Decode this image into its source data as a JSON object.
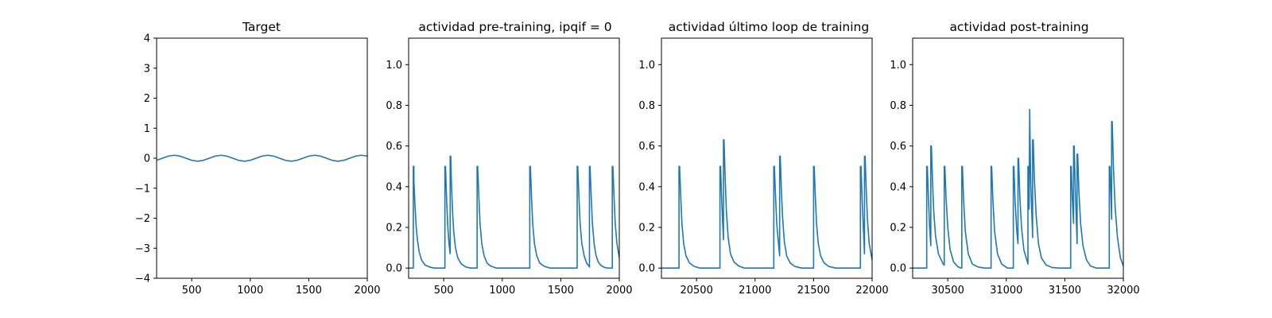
{
  "chart_data": [
    {
      "type": "line",
      "title": "Target",
      "xlim": [
        200,
        2000
      ],
      "ylim": [
        -4,
        4
      ],
      "xticks": [
        500,
        1000,
        1500,
        2000
      ],
      "yticks": [
        -4,
        -3,
        -2,
        -1,
        0,
        1,
        2,
        3,
        4
      ],
      "color": "#1f77b4",
      "series": [
        {
          "x": [
            200,
            250,
            300,
            350,
            400,
            450,
            500,
            550,
            600,
            650,
            700,
            750,
            800,
            850,
            900,
            950,
            1000,
            1050,
            1100,
            1150,
            1200,
            1250,
            1300,
            1350,
            1400,
            1450,
            1500,
            1550,
            1600,
            1650,
            1700,
            1750,
            1800,
            1850,
            1900,
            1950,
            2000
          ],
          "y": [
            -0.07,
            0.0,
            0.07,
            0.1,
            0.07,
            0.0,
            -0.07,
            -0.1,
            -0.07,
            0.0,
            0.07,
            0.1,
            0.07,
            0.0,
            -0.07,
            -0.1,
            -0.07,
            0.0,
            0.07,
            0.1,
            0.07,
            0.0,
            -0.07,
            -0.1,
            -0.07,
            0.0,
            0.07,
            0.1,
            0.07,
            0.0,
            -0.07,
            -0.1,
            -0.07,
            0.0,
            0.07,
            0.1,
            0.07
          ]
        }
      ]
    },
    {
      "type": "line",
      "title": "actividad pre-training, ipqif = 0",
      "xlim": [
        200,
        2000
      ],
      "ylim": [
        -0.05,
        1.13
      ],
      "xticks": [
        500,
        1000,
        1500,
        2000
      ],
      "yticks": [
        0.0,
        0.2,
        0.4,
        0.6,
        0.8,
        1.0
      ],
      "color": "#1f77b4",
      "series": [
        {
          "x": [
            200,
            240,
            240,
            245,
            245,
            255,
            265,
            275,
            290,
            310,
            340,
            380,
            420,
            460,
            510,
            510,
            515,
            525,
            535,
            545,
            555,
            555,
            560,
            565,
            575,
            585,
            600,
            620,
            650,
            690,
            730,
            785,
            785,
            790,
            800,
            810,
            825,
            845,
            870,
            900,
            950,
            1000,
            1060,
            1120,
            1180,
            1235,
            1235,
            1240,
            1250,
            1260,
            1275,
            1295,
            1320,
            1360,
            1410,
            1460,
            1510,
            1570,
            1640,
            1640,
            1645,
            1655,
            1665,
            1680,
            1700,
            1720,
            1740,
            1745,
            1745,
            1750,
            1760,
            1770,
            1785,
            1800,
            1820,
            1845,
            1870,
            1900,
            1930,
            1940,
            1940,
            1945,
            1955,
            1965,
            1980,
            2000
          ],
          "y": [
            0.0,
            0.0,
            0.5,
            0.5,
            0.43,
            0.3,
            0.2,
            0.14,
            0.08,
            0.04,
            0.015,
            0.005,
            0.0,
            0.0,
            0.0,
            0.5,
            0.5,
            0.33,
            0.2,
            0.12,
            0.07,
            0.55,
            0.55,
            0.43,
            0.28,
            0.18,
            0.1,
            0.05,
            0.02,
            0.005,
            0.0,
            0.0,
            0.5,
            0.5,
            0.35,
            0.22,
            0.12,
            0.06,
            0.025,
            0.01,
            0.0,
            0.0,
            0.0,
            0.0,
            0.0,
            0.0,
            0.5,
            0.5,
            0.35,
            0.22,
            0.12,
            0.06,
            0.025,
            0.008,
            0.0,
            0.0,
            0.0,
            0.0,
            0.0,
            0.5,
            0.5,
            0.35,
            0.22,
            0.12,
            0.06,
            0.025,
            0.01,
            0.005,
            0.5,
            0.5,
            0.35,
            0.22,
            0.12,
            0.065,
            0.03,
            0.012,
            0.004,
            0.0,
            0.0,
            0.0,
            0.5,
            0.5,
            0.35,
            0.22,
            0.12,
            0.05
          ]
        }
      ]
    },
    {
      "type": "line",
      "title": "actividad último loop de training",
      "xlim": [
        20200,
        22000
      ],
      "ylim": [
        -0.05,
        1.13
      ],
      "xticks": [
        20500,
        21000,
        21500,
        22000
      ],
      "yticks": [
        0.0,
        0.2,
        0.4,
        0.6,
        0.8,
        1.0
      ],
      "color": "#1f77b4",
      "series": [
        {
          "x": [
            20200,
            20350,
            20350,
            20355,
            20365,
            20375,
            20390,
            20410,
            20440,
            20480,
            20530,
            20600,
            20700,
            20700,
            20705,
            20715,
            20725,
            20730,
            20730,
            20735,
            20745,
            20755,
            20770,
            20790,
            20820,
            20860,
            20910,
            20980,
            21060,
            21160,
            21160,
            21165,
            21175,
            21185,
            21200,
            21210,
            21210,
            21215,
            21225,
            21235,
            21250,
            21270,
            21300,
            21340,
            21400,
            21450,
            21500,
            21500,
            21505,
            21515,
            21525,
            21540,
            21560,
            21590,
            21630,
            21690,
            21760,
            21840,
            21900,
            21900,
            21905,
            21915,
            21925,
            21935,
            21935,
            21940,
            21950,
            21960,
            21975,
            22000
          ],
          "y": [
            0.0,
            0.0,
            0.5,
            0.5,
            0.35,
            0.22,
            0.12,
            0.06,
            0.025,
            0.008,
            0.0,
            0.0,
            0.0,
            0.5,
            0.5,
            0.33,
            0.2,
            0.14,
            0.63,
            0.63,
            0.43,
            0.28,
            0.15,
            0.07,
            0.03,
            0.01,
            0.0,
            0.0,
            0.0,
            0.0,
            0.5,
            0.5,
            0.35,
            0.22,
            0.12,
            0.06,
            0.55,
            0.55,
            0.38,
            0.25,
            0.13,
            0.06,
            0.025,
            0.008,
            0.0,
            0.0,
            0.0,
            0.5,
            0.5,
            0.35,
            0.22,
            0.12,
            0.06,
            0.025,
            0.008,
            0.0,
            0.0,
            0.0,
            0.0,
            0.5,
            0.5,
            0.33,
            0.2,
            0.07,
            0.55,
            0.55,
            0.38,
            0.24,
            0.12,
            0.04
          ]
        }
      ]
    },
    {
      "type": "line",
      "title": "actividad post-training",
      "xlim": [
        30200,
        32000
      ],
      "ylim": [
        -0.05,
        1.13
      ],
      "xticks": [
        30500,
        31000,
        31500,
        32000
      ],
      "yticks": [
        0.0,
        0.2,
        0.4,
        0.6,
        0.8,
        1.0
      ],
      "color": "#1f77b4",
      "series": [
        {
          "x": [
            30200,
            30320,
            30320,
            30325,
            30335,
            30345,
            30355,
            30355,
            30360,
            30370,
            30380,
            30395,
            30420,
            30460,
            30470,
            30470,
            30475,
            30485,
            30500,
            30520,
            30550,
            30590,
            30620,
            30620,
            30625,
            30635,
            30650,
            30675,
            30710,
            30760,
            30820,
            30870,
            30870,
            30875,
            30885,
            30900,
            30925,
            30960,
            31010,
            31060,
            31060,
            31065,
            31075,
            31090,
            31100,
            31100,
            31105,
            31115,
            31130,
            31150,
            31180,
            31185,
            31185,
            31190,
            31195,
            31200,
            31200,
            31205,
            31210,
            31225,
            31225,
            31230,
            31240,
            31255,
            31275,
            31300,
            31340,
            31390,
            31450,
            31500,
            31550,
            31550,
            31555,
            31565,
            31575,
            31575,
            31580,
            31590,
            31605,
            31605,
            31610,
            31620,
            31635,
            31655,
            31685,
            31720,
            31770,
            31830,
            31880,
            31880,
            31885,
            31895,
            31900,
            31900,
            31905,
            31915,
            31930,
            31950,
            31975,
            32000
          ],
          "y": [
            0.0,
            0.0,
            0.5,
            0.5,
            0.34,
            0.2,
            0.11,
            0.6,
            0.6,
            0.42,
            0.28,
            0.16,
            0.07,
            0.02,
            0.015,
            0.5,
            0.5,
            0.35,
            0.2,
            0.09,
            0.03,
            0.005,
            0.0,
            0.5,
            0.5,
            0.34,
            0.18,
            0.07,
            0.02,
            0.005,
            0.0,
            0.0,
            0.5,
            0.5,
            0.34,
            0.18,
            0.07,
            0.02,
            0.0,
            0.0,
            0.5,
            0.5,
            0.33,
            0.18,
            0.12,
            0.54,
            0.54,
            0.36,
            0.2,
            0.09,
            0.03,
            0.02,
            0.5,
            0.5,
            0.29,
            0.78,
            0.78,
            0.55,
            0.4,
            0.15,
            0.63,
            0.63,
            0.44,
            0.26,
            0.12,
            0.05,
            0.015,
            0.003,
            0.0,
            0.0,
            0.0,
            0.5,
            0.5,
            0.33,
            0.22,
            0.6,
            0.6,
            0.38,
            0.12,
            0.56,
            0.56,
            0.38,
            0.22,
            0.11,
            0.04,
            0.01,
            0.0,
            0.0,
            0.0,
            0.5,
            0.5,
            0.33,
            0.24,
            0.72,
            0.72,
            0.5,
            0.3,
            0.15,
            0.05,
            0.01
          ]
        }
      ]
    }
  ]
}
